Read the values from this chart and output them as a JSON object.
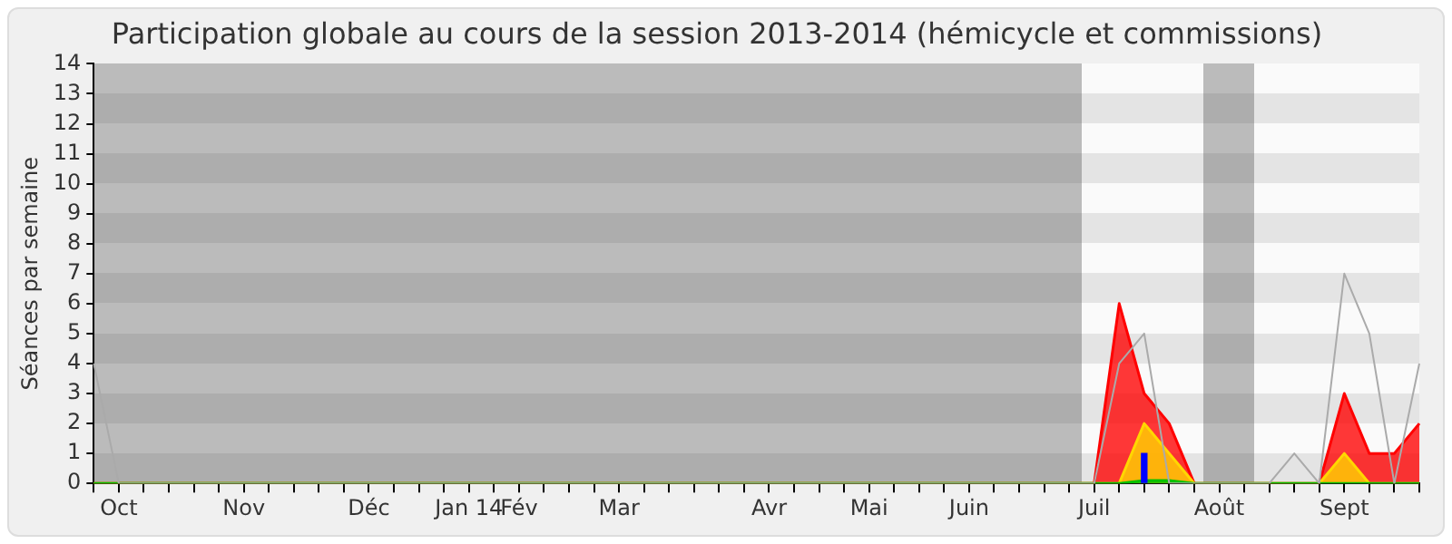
{
  "chart_data": {
    "type": "area",
    "title": "Participation globale au cours de la session 2013-2014 (hémicycle et commissions)",
    "ylabel": "Séances par semaine",
    "categories": [
      null,
      "Oct",
      null,
      null,
      null,
      null,
      "Nov",
      null,
      null,
      null,
      null,
      "Déc",
      null,
      null,
      null,
      "Jan 14",
      null,
      "Fév",
      null,
      null,
      null,
      "Mar",
      null,
      null,
      null,
      null,
      null,
      "Avr",
      null,
      null,
      null,
      "Mai",
      null,
      null,
      null,
      "Juin",
      null,
      null,
      null,
      null,
      "Juil",
      null,
      null,
      null,
      null,
      "Août",
      null,
      null,
      null,
      null,
      "Sept",
      null,
      null,
      null
    ],
    "series": [
      {
        "type": "line",
        "color": "#aaaaaa",
        "values": [
          4,
          0,
          0,
          0,
          0,
          0,
          0,
          0,
          0,
          0,
          0,
          0,
          0,
          0,
          0,
          0,
          0,
          0,
          0,
          0,
          0,
          0,
          0,
          0,
          0,
          0,
          0,
          0,
          0,
          0,
          0,
          0,
          0,
          0,
          0,
          0,
          0,
          0,
          0,
          0,
          0,
          4,
          5,
          0,
          0,
          0,
          0,
          0,
          1,
          0,
          7,
          5,
          0,
          4
        ]
      },
      {
        "color": "#ff0000",
        "values": [
          0,
          0,
          0,
          0,
          0,
          0,
          0,
          0,
          0,
          0,
          0,
          0,
          0,
          0,
          0,
          0,
          0,
          0,
          0,
          0,
          0,
          0,
          0,
          0,
          0,
          0,
          0,
          0,
          0,
          0,
          0,
          0,
          0,
          0,
          0,
          0,
          0,
          0,
          0,
          0,
          0,
          6,
          3,
          2,
          0,
          0,
          0,
          0,
          0,
          0,
          3,
          1,
          1,
          2
        ]
      },
      {
        "color": "#ffd700",
        "values": [
          0,
          0,
          0,
          0,
          0,
          0,
          0,
          0,
          0,
          0,
          0,
          0,
          0,
          0,
          0,
          0,
          0,
          0,
          0,
          0,
          0,
          0,
          0,
          0,
          0,
          0,
          0,
          0,
          0,
          0,
          0,
          0,
          0,
          0,
          0,
          0,
          0,
          0,
          0,
          0,
          0,
          0,
          2,
          1,
          0,
          0,
          0,
          0,
          0,
          0,
          1,
          0,
          0,
          0
        ]
      },
      {
        "color": "#00c000",
        "values": [
          0,
          0,
          0,
          0,
          0,
          0,
          0,
          0,
          0,
          0,
          0,
          0,
          0,
          0,
          0,
          0,
          0,
          0,
          0,
          0,
          0,
          0,
          0,
          0,
          0,
          0,
          0,
          0,
          0,
          0,
          0,
          0,
          0,
          0,
          0,
          0,
          0,
          0,
          0,
          0,
          0,
          0,
          0.1,
          0.1,
          0,
          0,
          0,
          0,
          0,
          0,
          0,
          0,
          0,
          0
        ]
      },
      {
        "type": "bar",
        "color": "#0000ff",
        "values": [
          null,
          null,
          null,
          null,
          null,
          null,
          null,
          null,
          null,
          null,
          null,
          null,
          null,
          null,
          null,
          null,
          null,
          null,
          null,
          null,
          null,
          null,
          null,
          null,
          null,
          null,
          null,
          null,
          null,
          null,
          null,
          null,
          null,
          null,
          null,
          null,
          null,
          null,
          null,
          null,
          null,
          null,
          1,
          null,
          null,
          null,
          null,
          null,
          null,
          null,
          null,
          null,
          null,
          null
        ]
      }
    ],
    "ylim": [
      0,
      14
    ],
    "yticks": [
      0,
      1,
      2,
      3,
      4,
      5,
      6,
      7,
      8,
      9,
      10,
      11,
      12,
      13,
      14
    ],
    "legend": false
  }
}
